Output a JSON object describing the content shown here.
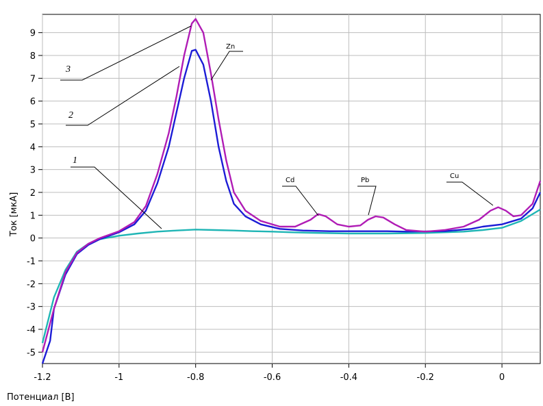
{
  "chart_data": {
    "type": "line",
    "xlabel": "Потенциал [В]",
    "ylabel": "Ток [мкА]",
    "xlim": [
      -1.2,
      0.1
    ],
    "ylim": [
      -5.5,
      9.8
    ],
    "xticks": [
      -1.2,
      -1,
      -0.8,
      -0.6,
      -0.4,
      -0.2,
      0
    ],
    "xtick_labels": [
      "-1.2",
      "-1",
      "-0.8",
      "-0.6",
      "-0.4",
      "-0.2",
      "0"
    ],
    "yticks": [
      -5,
      -4,
      -3,
      -2,
      -1,
      0,
      1,
      2,
      3,
      4,
      5,
      6,
      7,
      8,
      9
    ],
    "ytick_labels": [
      "-5",
      "-4",
      "-3",
      "-2",
      "-1",
      "0",
      "1",
      "2",
      "3",
      "4",
      "5",
      "6",
      "7",
      "8",
      "9"
    ],
    "grid": true,
    "series": [
      {
        "name": "1",
        "color": "#1fb5b5",
        "points": [
          [
            -1.2,
            -4.6
          ],
          [
            -1.17,
            -2.6
          ],
          [
            -1.14,
            -1.4
          ],
          [
            -1.11,
            -0.6
          ],
          [
            -1.08,
            -0.25
          ],
          [
            -1.05,
            -0.05
          ],
          [
            -1.0,
            0.1
          ],
          [
            -0.95,
            0.2
          ],
          [
            -0.9,
            0.28
          ],
          [
            -0.85,
            0.33
          ],
          [
            -0.8,
            0.37
          ],
          [
            -0.75,
            0.35
          ],
          [
            -0.7,
            0.33
          ],
          [
            -0.65,
            0.3
          ],
          [
            -0.6,
            0.28
          ],
          [
            -0.55,
            0.25
          ],
          [
            -0.5,
            0.23
          ],
          [
            -0.4,
            0.2
          ],
          [
            -0.3,
            0.2
          ],
          [
            -0.2,
            0.22
          ],
          [
            -0.1,
            0.28
          ],
          [
            -0.05,
            0.35
          ],
          [
            0.0,
            0.45
          ],
          [
            0.05,
            0.75
          ],
          [
            0.1,
            1.25
          ]
        ]
      },
      {
        "name": "2",
        "color": "#1c1cd6",
        "points": [
          [
            -1.2,
            -5.5
          ],
          [
            -1.18,
            -4.5
          ],
          [
            -1.17,
            -3.1
          ],
          [
            -1.14,
            -1.6
          ],
          [
            -1.11,
            -0.7
          ],
          [
            -1.08,
            -0.3
          ],
          [
            -1.05,
            -0.05
          ],
          [
            -1.0,
            0.25
          ],
          [
            -0.96,
            0.6
          ],
          [
            -0.93,
            1.2
          ],
          [
            -0.9,
            2.4
          ],
          [
            -0.87,
            4.0
          ],
          [
            -0.85,
            5.5
          ],
          [
            -0.83,
            7.0
          ],
          [
            -0.81,
            8.2
          ],
          [
            -0.8,
            8.25
          ],
          [
            -0.78,
            7.6
          ],
          [
            -0.76,
            6.0
          ],
          [
            -0.74,
            4.0
          ],
          [
            -0.72,
            2.5
          ],
          [
            -0.7,
            1.5
          ],
          [
            -0.67,
            0.95
          ],
          [
            -0.63,
            0.6
          ],
          [
            -0.58,
            0.4
          ],
          [
            -0.52,
            0.33
          ],
          [
            -0.45,
            0.3
          ],
          [
            -0.35,
            0.3
          ],
          [
            -0.3,
            0.3
          ],
          [
            -0.25,
            0.28
          ],
          [
            -0.15,
            0.3
          ],
          [
            -0.08,
            0.4
          ],
          [
            -0.05,
            0.5
          ],
          [
            0.0,
            0.6
          ],
          [
            0.05,
            0.85
          ],
          [
            0.08,
            1.3
          ],
          [
            0.1,
            2.0
          ]
        ]
      },
      {
        "name": "3",
        "color": "#b01cb5",
        "points": [
          [
            -1.2,
            -5.0
          ],
          [
            -1.17,
            -3.1
          ],
          [
            -1.14,
            -1.5
          ],
          [
            -1.11,
            -0.65
          ],
          [
            -1.08,
            -0.25
          ],
          [
            -1.05,
            0.0
          ],
          [
            -1.0,
            0.3
          ],
          [
            -0.96,
            0.7
          ],
          [
            -0.93,
            1.4
          ],
          [
            -0.9,
            2.8
          ],
          [
            -0.87,
            4.6
          ],
          [
            -0.85,
            6.2
          ],
          [
            -0.83,
            8.0
          ],
          [
            -0.81,
            9.4
          ],
          [
            -0.8,
            9.6
          ],
          [
            -0.78,
            9.0
          ],
          [
            -0.76,
            7.2
          ],
          [
            -0.74,
            5.2
          ],
          [
            -0.72,
            3.4
          ],
          [
            -0.7,
            2.0
          ],
          [
            -0.67,
            1.2
          ],
          [
            -0.63,
            0.75
          ],
          [
            -0.58,
            0.5
          ],
          [
            -0.54,
            0.5
          ],
          [
            -0.5,
            0.8
          ],
          [
            -0.48,
            1.05
          ],
          [
            -0.46,
            0.95
          ],
          [
            -0.43,
            0.6
          ],
          [
            -0.4,
            0.5
          ],
          [
            -0.37,
            0.55
          ],
          [
            -0.35,
            0.8
          ],
          [
            -0.33,
            0.95
          ],
          [
            -0.31,
            0.9
          ],
          [
            -0.28,
            0.6
          ],
          [
            -0.25,
            0.35
          ],
          [
            -0.2,
            0.28
          ],
          [
            -0.15,
            0.35
          ],
          [
            -0.1,
            0.5
          ],
          [
            -0.06,
            0.8
          ],
          [
            -0.03,
            1.2
          ],
          [
            -0.01,
            1.35
          ],
          [
            0.01,
            1.2
          ],
          [
            0.03,
            0.95
          ],
          [
            0.05,
            1.0
          ],
          [
            0.08,
            1.5
          ],
          [
            0.1,
            2.5
          ]
        ]
      }
    ],
    "annotations": [
      {
        "label": "1"
      },
      {
        "label": "2"
      },
      {
        "label": "3"
      },
      {
        "label": "Zn"
      },
      {
        "label": "Cd"
      },
      {
        "label": "Pb"
      },
      {
        "label": "Cu"
      }
    ]
  }
}
